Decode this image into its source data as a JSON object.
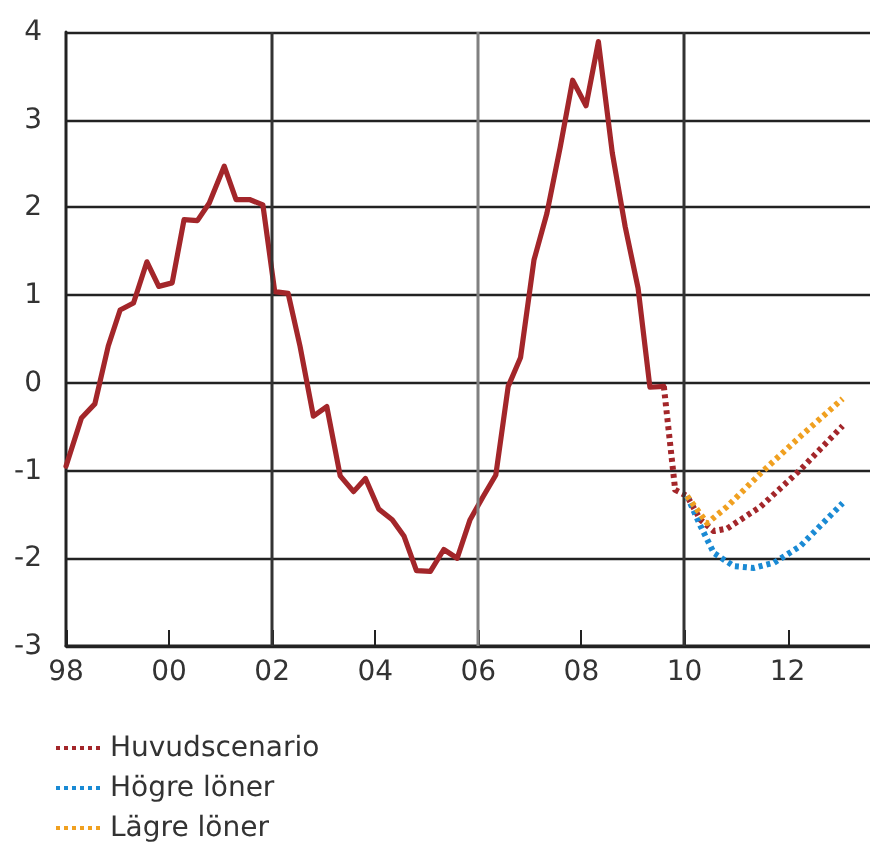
{
  "chart_data": {
    "type": "line",
    "xlim": [
      1998,
      2013.6
    ],
    "xticks": [
      {
        "value": 1998,
        "label": "98"
      },
      {
        "value": 2000,
        "label": "00"
      },
      {
        "value": 2002,
        "label": "02"
      },
      {
        "value": 2004,
        "label": "04"
      },
      {
        "value": 2006,
        "label": "06"
      },
      {
        "value": 2008,
        "label": "08"
      },
      {
        "value": 2010,
        "label": "10"
      },
      {
        "value": 2012,
        "label": "12"
      }
    ],
    "ylim": [
      -3,
      4
    ],
    "yticks": [
      -3,
      -2,
      -1,
      0,
      1,
      2,
      3,
      4
    ],
    "grid": "y",
    "legend": "bottom",
    "marker": "none",
    "ref_lines": [
      {
        "axis": "x",
        "value": 2002,
        "label": null,
        "color": "#333333"
      },
      {
        "axis": "x",
        "value": 2006,
        "label": null,
        "color": "#808080"
      },
      {
        "axis": "x",
        "value": 2010,
        "label": null,
        "color": "#333333"
      }
    ],
    "series": [
      {
        "color": "#a3262a",
        "line_style": "solid",
        "x": [
          1998.0,
          1998.3,
          1998.56,
          1998.82,
          1999.05,
          1999.31,
          1999.57,
          1999.8,
          2000.06,
          2000.29,
          2000.55,
          2000.78,
          2001.07,
          2001.3,
          2001.56,
          2001.82,
          2002.05,
          2002.31,
          2002.54,
          2002.8,
          2003.06,
          2003.32,
          2003.58,
          2003.81,
          2004.07,
          2004.33,
          2004.56,
          2004.8,
          2005.07,
          2005.33,
          2005.59,
          2005.84,
          2006.1,
          2006.34,
          2006.58,
          2006.82,
          2007.08,
          2007.33,
          2007.59,
          2007.83,
          2008.09,
          2008.33,
          2008.6,
          2008.85,
          2009.1,
          2009.33,
          2009.6
        ],
        "values": [
          -0.95,
          -0.4,
          -0.24,
          0.42,
          0.83,
          0.91,
          1.38,
          1.1,
          1.14,
          1.86,
          1.85,
          2.05,
          2.47,
          2.09,
          2.09,
          2.03,
          1.04,
          1.02,
          0.42,
          -0.38,
          -0.27,
          -1.06,
          -1.24,
          -1.09,
          -1.44,
          -1.56,
          -1.75,
          -2.14,
          -2.15,
          -1.9,
          -2.0,
          -1.56,
          -1.29,
          -1.05,
          -0.04,
          0.29,
          1.4,
          1.93,
          2.69,
          3.45,
          3.16,
          3.89,
          2.62,
          1.78,
          1.08,
          -0.05,
          -0.04
        ]
      },
      {
        "name": "Huvudscenario",
        "color": "#a3262a",
        "line_style": "dotted",
        "x": [
          2009.6,
          2009.82,
          2010.05,
          2010.31,
          2010.57,
          2010.83,
          2011.48,
          2012.25,
          2013.07
        ],
        "values": [
          -0.04,
          -1.22,
          -1.29,
          -1.56,
          -1.69,
          -1.66,
          -1.41,
          -0.99,
          -0.49
        ]
      },
      {
        "name": "Högre löner",
        "color": "#1a8ad4",
        "line_style": "dotted",
        "x": [
          2010.05,
          2010.31,
          2010.57,
          2010.96,
          2011.35,
          2011.74,
          2012.25,
          2013.07
        ],
        "values": [
          -1.29,
          -1.63,
          -1.94,
          -2.09,
          -2.11,
          -2.05,
          -1.86,
          -1.37
        ]
      },
      {
        "name": "Lägre löner",
        "color": "#f0a020",
        "line_style": "dotted",
        "x": [
          2010.05,
          2010.44,
          2010.83,
          2011.48,
          2012.25,
          2013.07
        ],
        "values": [
          -1.29,
          -1.6,
          -1.41,
          -1.03,
          -0.61,
          -0.18
        ]
      }
    ]
  }
}
